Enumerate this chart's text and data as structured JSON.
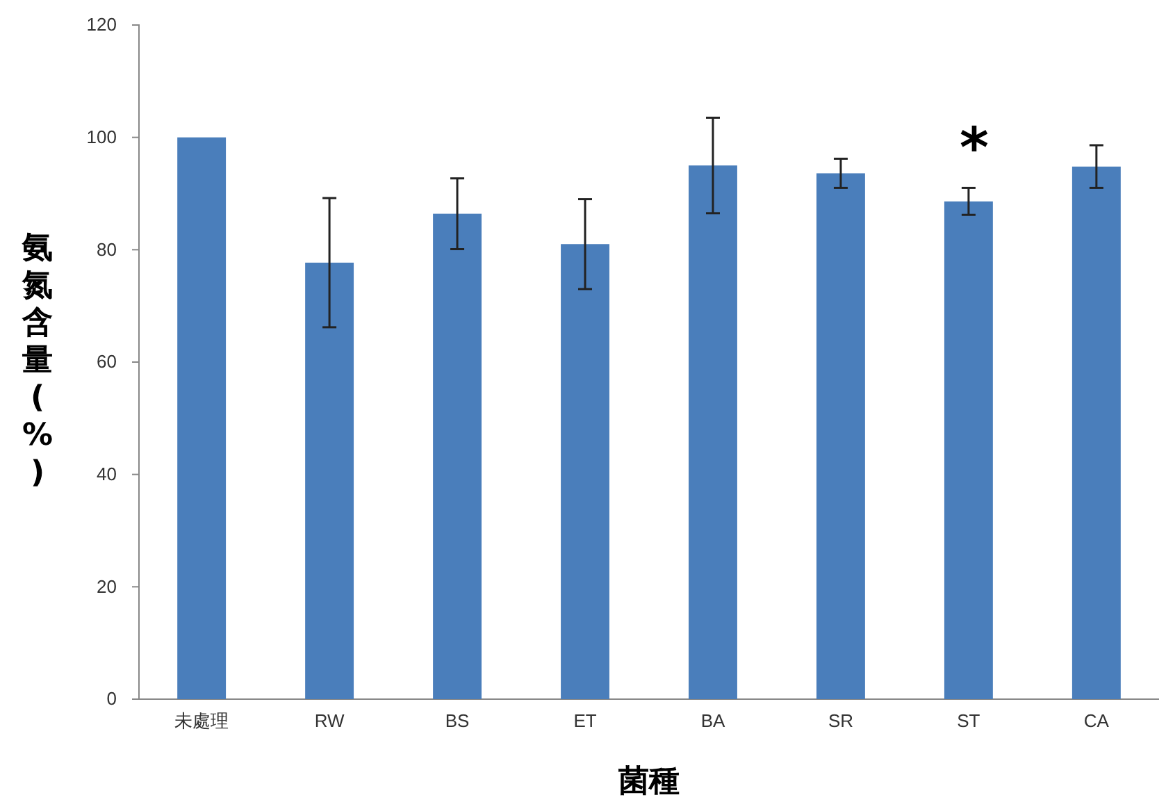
{
  "chart_data": {
    "type": "bar",
    "categories": [
      "未處理",
      "RW",
      "BS",
      "ET",
      "BA",
      "SR",
      "ST",
      "CA"
    ],
    "values": [
      100,
      77.7,
      86.4,
      81,
      95,
      93.6,
      88.6,
      94.8
    ],
    "errors": [
      null,
      11.5,
      6.3,
      8,
      8.5,
      2.6,
      2.4,
      3.8
    ],
    "color": "#4a7ebb",
    "ylim": [
      0,
      120
    ],
    "yticks": [
      0,
      20,
      40,
      60,
      80,
      100,
      120
    ],
    "xlabel": "菌種",
    "ylabel": "氨氮含量(%)",
    "annotations": [
      "*"
    ],
    "grid": false
  }
}
